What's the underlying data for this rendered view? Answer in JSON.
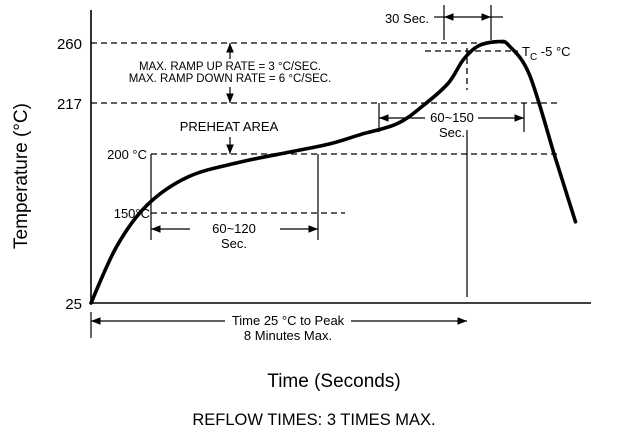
{
  "chart_data": {
    "type": "line",
    "xlabel": "Time (Seconds)",
    "ylabel": "Temperature  (°C)",
    "y_ticks": [
      "260",
      "217",
      "25"
    ],
    "y_tick_values": [
      260,
      217,
      25
    ],
    "ylim": [
      25,
      260
    ],
    "series": [
      {
        "values_desc": "reflow profile temperature curve",
        "x_rel": [
          0,
          0.05,
          0.11,
          0.19,
          0.29,
          0.39,
          0.47,
          0.53,
          0.6,
          0.65,
          0.7,
          0.73,
          0.76,
          0.8,
          0.82,
          0.86,
          0.91,
          0.95
        ],
        "y": [
          25,
          79,
          119,
          146,
          160,
          170,
          178,
          187,
          197,
          214,
          231,
          248,
          258,
          261,
          258,
          237,
          165,
          103
        ]
      }
    ],
    "reference_lines": {
      "peak": "260",
      "liquidus": "217",
      "preheat_top": "200 °C",
      "preheat_start": "150°C"
    },
    "annotations": {
      "ramp_up": "MAX. RAMP UP RATE = 3 °C/SEC.",
      "ramp_down": "MAX. RAMP DOWN RATE = 6 °C/SEC.",
      "preheat_area": "PREHEAT AREA",
      "preheat_200": "200 °C",
      "preheat_150": "150°C",
      "preheat_time_1": "60~120",
      "preheat_time_2": "Sec.",
      "peak_time": "30 Sec.",
      "tc_main": "T",
      "tc_sub": "C",
      "tc_rest": " -5 °C",
      "liquidus_time_1": "60~150",
      "liquidus_time_2": "Sec.",
      "total_time_1": "Time 25 °C to Peak",
      "total_time_2": "8 Minutes Max."
    },
    "footer": "REFLOW TIMES: 3 TIMES MAX."
  }
}
